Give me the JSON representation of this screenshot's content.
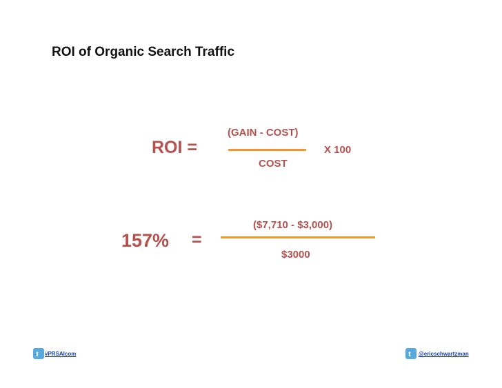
{
  "slide": {
    "title": "ROI of Organic Search Traffic",
    "formula": {
      "lhs": "ROI =",
      "numerator": "(GAIN - COST)",
      "denominator": "COST",
      "multiplier": "X 100"
    },
    "example": {
      "result": "157%",
      "equals": "=",
      "numerator": "($7,710 - $3,000)",
      "denominator": "$3000"
    },
    "footer": {
      "left_link": "#PRSAIcom",
      "right_link": "@ericschwartzman",
      "icon": "twitter-icon"
    },
    "colors": {
      "accent_text": "#b5504c",
      "fraction_line": "#f0962a",
      "link": "#1a3fb0"
    }
  }
}
